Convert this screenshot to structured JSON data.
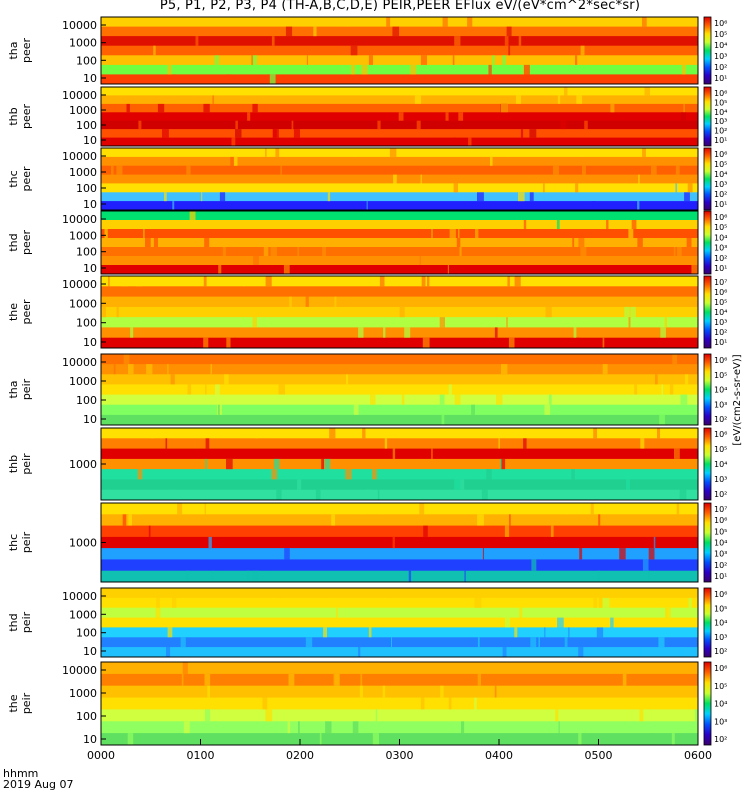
{
  "chart_data": {
    "type": "heatmap",
    "title": "P5, P1, P2, P3, P4 (TH-A,B,C,D,E) PEIR,PEER EFlux eV/(eV*cm^2*sec*sr)",
    "colorbar_unit": "[eV/(cm2-s-sr-eV)]",
    "colormap": [
      "#3a006b",
      "#2a00c8",
      "#0050ff",
      "#00d0ff",
      "#00e060",
      "#c8ff30",
      "#ffe000",
      "#ff6000",
      "#e00000"
    ],
    "x_ticks": [
      "0000",
      "0100",
      "0200",
      "0300",
      "0400",
      "0500",
      "0600"
    ],
    "x_label": "hhmm",
    "date_label": "2019 Aug 07",
    "panels": [
      {
        "label": "tha",
        "sublabel": "peer",
        "y_ticks": [
          "10",
          "100",
          "1000",
          "10000"
        ],
        "cb_ticks": [
          "10¹",
          "10²",
          "10³",
          "10⁴",
          "10⁵",
          "10⁶"
        ]
      },
      {
        "label": "thb",
        "sublabel": "peer",
        "y_ticks": [
          "10",
          "100",
          "1000",
          "10000"
        ],
        "cb_ticks": [
          "10¹",
          "10²",
          "10³",
          "10⁴",
          "10⁵",
          "10⁶"
        ]
      },
      {
        "label": "thc",
        "sublabel": "peer",
        "y_ticks": [
          "10",
          "100",
          "1000",
          "10000"
        ],
        "cb_ticks": [
          "10¹",
          "10²",
          "10³",
          "10⁴",
          "10⁵",
          "10⁶"
        ]
      },
      {
        "label": "thd",
        "sublabel": "peer",
        "y_ticks": [
          "10",
          "100",
          "1000",
          "10000"
        ],
        "cb_ticks": [
          "10¹",
          "10²",
          "10³",
          "10⁴",
          "10⁵",
          "10⁶"
        ]
      },
      {
        "label": "the",
        "sublabel": "peer",
        "y_ticks": [
          "10",
          "100",
          "1000",
          "10000"
        ],
        "cb_ticks": [
          "10¹",
          "10²",
          "10³",
          "10⁴",
          "10⁵",
          "10⁶",
          "10⁷"
        ]
      },
      {
        "label": "tha",
        "sublabel": "peir",
        "y_ticks": [
          "10",
          "100",
          "1000",
          "10000"
        ],
        "cb_ticks": [
          "10²",
          "10³",
          "10⁴",
          "10⁵",
          "10⁶"
        ]
      },
      {
        "label": "thb",
        "sublabel": "peir",
        "y_ticks": [
          "1000"
        ],
        "cb_ticks": [
          "10²",
          "10³",
          "10⁴",
          "10⁵",
          "10⁶"
        ]
      },
      {
        "label": "thc",
        "sublabel": "peir",
        "y_ticks": [
          "1000"
        ],
        "cb_ticks": [
          "10¹",
          "10²",
          "10³",
          "10⁴",
          "10⁵",
          "10⁶",
          "10⁷"
        ]
      },
      {
        "label": "thd",
        "sublabel": "peir",
        "y_ticks": [
          "10",
          "100",
          "1000",
          "10000"
        ],
        "cb_ticks": [
          "10²",
          "10³",
          "10⁴",
          "10⁵",
          "10⁶"
        ]
      },
      {
        "label": "the",
        "sublabel": "peir",
        "y_ticks": [
          "10",
          "100",
          "1000",
          "10000"
        ],
        "cb_ticks": [
          "10²",
          "10³",
          "10⁴",
          "10⁵",
          "10⁶"
        ]
      }
    ]
  }
}
